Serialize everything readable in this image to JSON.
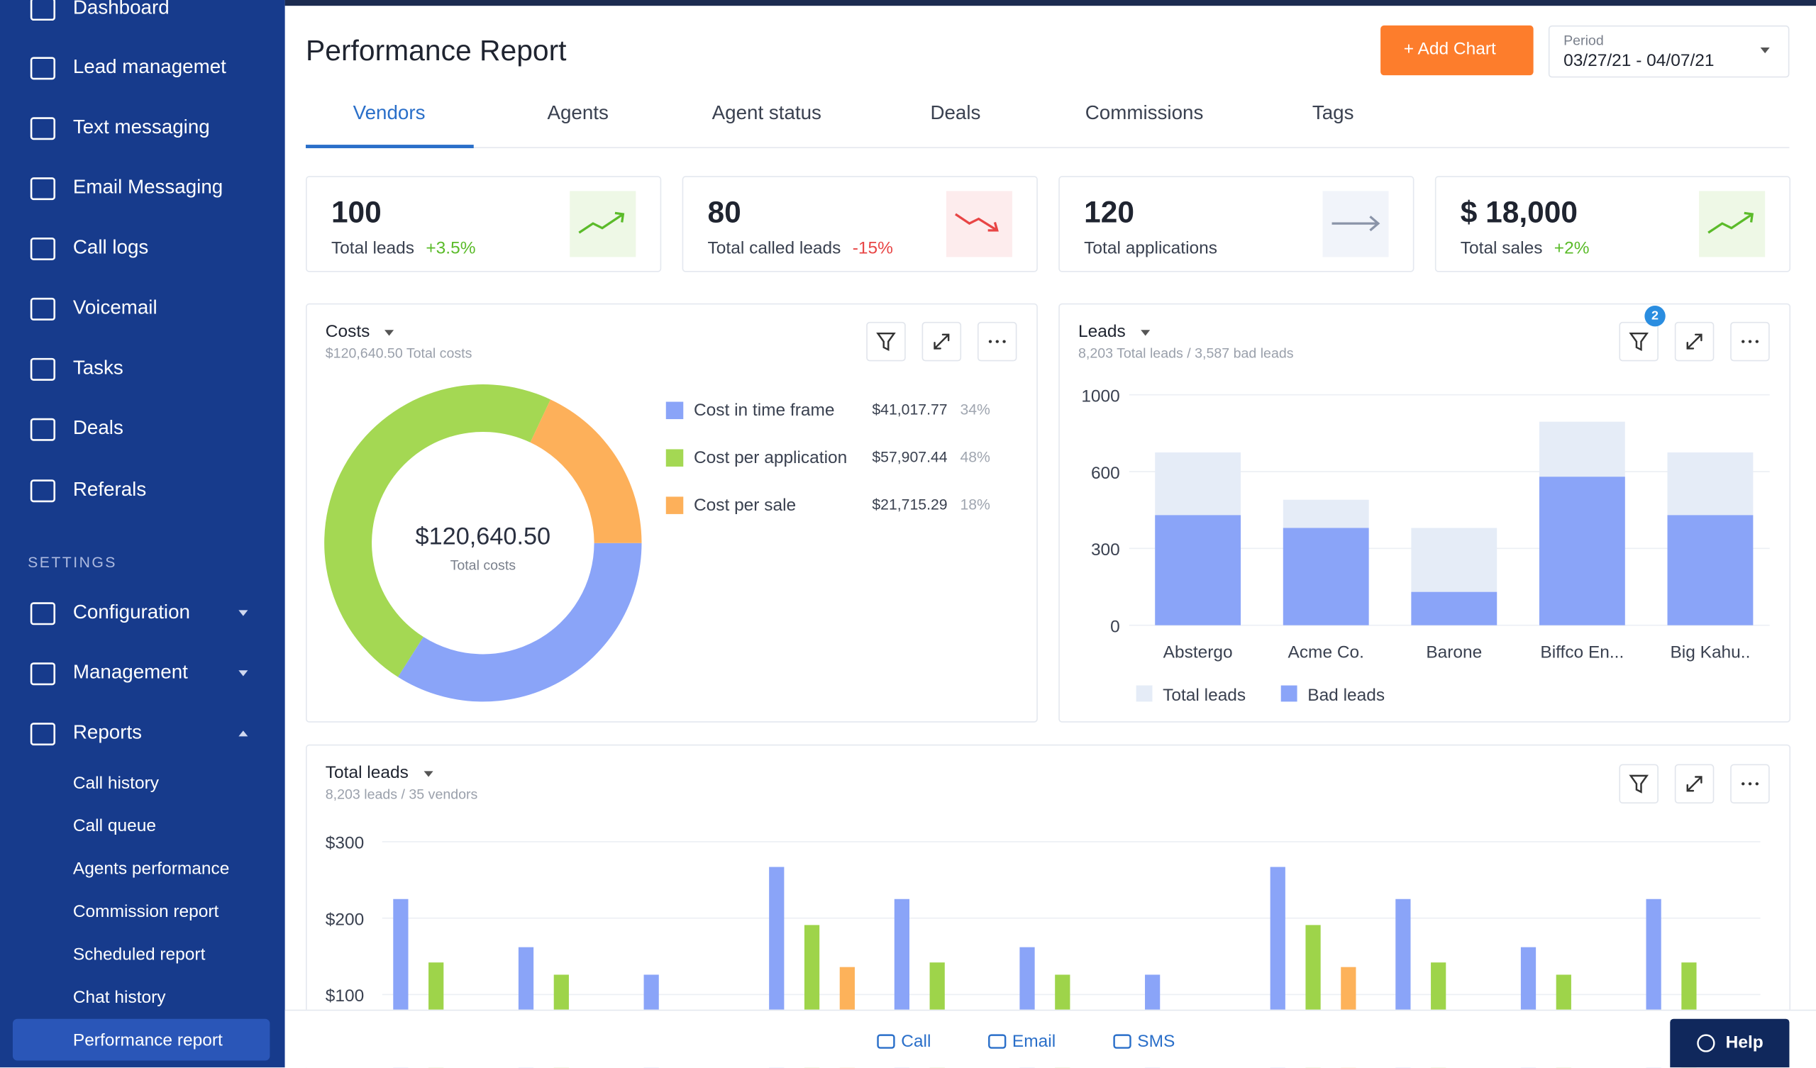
{
  "sidebar": {
    "items": [
      "Dashboard",
      "Lead managemet",
      "Text messaging",
      "Email Messaging",
      "Call logs",
      "Voicemail",
      "Tasks",
      "Deals",
      "Referals"
    ],
    "settings_heading": "SETTINGS",
    "settings_items": [
      "Configuration",
      "Management",
      "Reports"
    ],
    "reports_items": [
      "Call history",
      "Call queue",
      "Agents performance",
      "Commission report",
      "Scheduled report",
      "Chat history",
      "Performance report"
    ]
  },
  "header": {
    "title": "Performance Report",
    "add_chart": "Add Chart",
    "period_label": "Period",
    "period": "03/27/21 - 04/07/21"
  },
  "tabs": [
    "Vendors",
    "Agents",
    "Agent status",
    "Deals",
    "Commissions",
    "Tags"
  ],
  "kpis": [
    {
      "value": "100",
      "label": "Total leads",
      "change": "+3.5%"
    },
    {
      "value": "80",
      "label": "Total called leads",
      "change": "-15%"
    },
    {
      "value": "120",
      "label": "Total applications"
    },
    {
      "value": "$ 18,000",
      "label": "Total sales",
      "change": "+2%"
    }
  ],
  "chart_data": [
    {
      "type": "pie",
      "title": "Costs",
      "subtitle": "$120,640.50 Total costs",
      "center_value": "$120,640.50",
      "center_label": "Total costs",
      "categories": [
        "Cost in time frame",
        "Cost per application",
        "Cost per sale"
      ],
      "amounts": [
        "$41,017.77",
        "$57,907.44",
        "$21,715.29"
      ],
      "values": [
        34,
        48,
        18
      ],
      "value_labels": [
        "34%",
        "48%",
        "18%"
      ],
      "colors": [
        "#8aa4f8",
        "#a4d853",
        "#fdb05a"
      ]
    },
    {
      "type": "bar",
      "title": "Leads",
      "subtitle": "8,203 Total leads / 3,587 bad leads",
      "filter_badge": "2",
      "categories": [
        "Abstergo",
        "Acme Co.",
        "Barone",
        "Biffco En...",
        "Big Kahu.."
      ],
      "series": [
        {
          "name": "Total leads",
          "color": "#e5ecf7",
          "values": [
            700,
            490,
            380,
            860,
            700
          ]
        },
        {
          "name": "Bad leads",
          "color": "#8aa4f8",
          "values": [
            430,
            380,
            130,
            580,
            430
          ]
        }
      ],
      "ylim": [
        0,
        1000
      ],
      "yticks": [
        0,
        300,
        600,
        1000
      ],
      "grid": true,
      "legend": "bottom"
    },
    {
      "type": "bar",
      "title": "Total leads",
      "subtitle": "8,203 leads / 35 vendors",
      "categories": [
        null,
        null,
        null,
        null,
        null,
        null,
        null,
        null,
        null,
        null,
        null
      ],
      "series": [
        {
          "color": "#8aa4f8",
          "values": [
            225,
            162,
            126,
            267,
            225,
            162,
            126,
            267,
            225,
            162,
            225
          ]
        },
        {
          "color": "#9ed44a",
          "values": [
            142,
            126,
            null,
            191,
            142,
            126,
            null,
            191,
            142,
            126,
            142
          ]
        },
        {
          "color": "#fdb25a",
          "values": [
            null,
            null,
            null,
            136,
            null,
            null,
            null,
            136,
            null,
            null,
            null
          ]
        }
      ],
      "ylim": [
        0,
        300
      ],
      "yticks": [
        {
          "value": 100,
          "label": "$100"
        },
        {
          "value": 200,
          "label": "$200"
        },
        {
          "value": 300,
          "label": "$300"
        }
      ],
      "grid": true
    }
  ],
  "footer": {
    "call": "Call",
    "email": "Email",
    "sms": "SMS",
    "help": "Help"
  }
}
